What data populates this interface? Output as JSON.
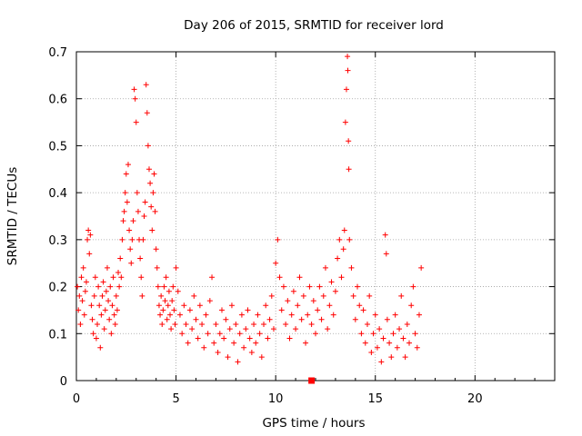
{
  "chart_data": {
    "type": "scatter",
    "title": "Day 206 of 2015, SRMTID for receiver lord",
    "xlabel": "GPS time / hours",
    "ylabel": "SRMTID / TECUs",
    "xlim": [
      0,
      24
    ],
    "ylim": [
      0,
      0.7
    ],
    "grid": true,
    "xticks": [
      0,
      5,
      10,
      15,
      20
    ],
    "xtick_labels": [
      "0",
      "5",
      "10",
      "15",
      "20"
    ],
    "yticks": [
      0,
      0.1,
      0.2,
      0.3,
      0.4,
      0.5,
      0.6,
      0.7
    ],
    "ytick_labels": [
      "0",
      "0.1",
      "0.2",
      "0.3",
      "0.4",
      "0.5",
      "0.6",
      "0.7"
    ],
    "marker": "plus",
    "color": "#ff0000",
    "missing_marker": {
      "x": 11.8,
      "y": 0.0,
      "shape": "square"
    },
    "series": [
      {
        "name": "SRMTID",
        "points": [
          [
            0.05,
            0.2
          ],
          [
            0.1,
            0.15
          ],
          [
            0.15,
            0.18
          ],
          [
            0.2,
            0.12
          ],
          [
            0.25,
            0.22
          ],
          [
            0.3,
            0.17
          ],
          [
            0.35,
            0.24
          ],
          [
            0.4,
            0.14
          ],
          [
            0.45,
            0.19
          ],
          [
            0.5,
            0.21
          ],
          [
            0.55,
            0.3
          ],
          [
            0.6,
            0.32
          ],
          [
            0.65,
            0.27
          ],
          [
            0.7,
            0.31
          ],
          [
            0.75,
            0.16
          ],
          [
            0.8,
            0.13
          ],
          [
            0.85,
            0.1
          ],
          [
            0.9,
            0.18
          ],
          [
            0.95,
            0.22
          ],
          [
            1.0,
            0.09
          ],
          [
            1.05,
            0.12
          ],
          [
            1.1,
            0.2
          ],
          [
            1.15,
            0.16
          ],
          [
            1.2,
            0.07
          ],
          [
            1.25,
            0.14
          ],
          [
            1.3,
            0.18
          ],
          [
            1.35,
            0.21
          ],
          [
            1.4,
            0.11
          ],
          [
            1.45,
            0.15
          ],
          [
            1.5,
            0.19
          ],
          [
            1.55,
            0.24
          ],
          [
            1.6,
            0.17
          ],
          [
            1.65,
            0.13
          ],
          [
            1.7,
            0.2
          ],
          [
            1.75,
            0.1
          ],
          [
            1.8,
            0.16
          ],
          [
            1.85,
            0.22
          ],
          [
            1.9,
            0.14
          ],
          [
            1.95,
            0.12
          ],
          [
            2.0,
            0.18
          ],
          [
            2.05,
            0.15
          ],
          [
            2.1,
            0.23
          ],
          [
            2.15,
            0.2
          ],
          [
            2.2,
            0.26
          ],
          [
            2.25,
            0.22
          ],
          [
            2.3,
            0.3
          ],
          [
            2.35,
            0.34
          ],
          [
            2.4,
            0.36
          ],
          [
            2.45,
            0.4
          ],
          [
            2.5,
            0.44
          ],
          [
            2.55,
            0.38
          ],
          [
            2.6,
            0.46
          ],
          [
            2.65,
            0.32
          ],
          [
            2.7,
            0.28
          ],
          [
            2.75,
            0.25
          ],
          [
            2.8,
            0.3
          ],
          [
            2.85,
            0.34
          ],
          [
            2.9,
            0.62
          ],
          [
            2.95,
            0.6
          ],
          [
            3.0,
            0.55
          ],
          [
            3.05,
            0.4
          ],
          [
            3.1,
            0.36
          ],
          [
            3.15,
            0.3
          ],
          [
            3.2,
            0.26
          ],
          [
            3.25,
            0.22
          ],
          [
            3.3,
            0.18
          ],
          [
            3.35,
            0.3
          ],
          [
            3.4,
            0.35
          ],
          [
            3.45,
            0.38
          ],
          [
            3.5,
            0.63
          ],
          [
            3.55,
            0.57
          ],
          [
            3.6,
            0.5
          ],
          [
            3.65,
            0.45
          ],
          [
            3.7,
            0.42
          ],
          [
            3.75,
            0.37
          ],
          [
            3.8,
            0.32
          ],
          [
            3.85,
            0.4
          ],
          [
            3.9,
            0.44
          ],
          [
            3.95,
            0.36
          ],
          [
            4.0,
            0.28
          ],
          [
            4.05,
            0.24
          ],
          [
            4.1,
            0.2
          ],
          [
            4.15,
            0.16
          ],
          [
            4.2,
            0.14
          ],
          [
            4.25,
            0.18
          ],
          [
            4.3,
            0.12
          ],
          [
            4.35,
            0.15
          ],
          [
            4.4,
            0.2
          ],
          [
            4.45,
            0.17
          ],
          [
            4.5,
            0.22
          ],
          [
            4.55,
            0.13
          ],
          [
            4.6,
            0.16
          ],
          [
            4.65,
            0.19
          ],
          [
            4.7,
            0.14
          ],
          [
            4.75,
            0.11
          ],
          [
            4.8,
            0.17
          ],
          [
            4.85,
            0.2
          ],
          [
            4.9,
            0.15
          ],
          [
            4.95,
            0.12
          ],
          [
            5.0,
            0.24
          ],
          [
            5.1,
            0.19
          ],
          [
            5.2,
            0.14
          ],
          [
            5.3,
            0.1
          ],
          [
            5.4,
            0.16
          ],
          [
            5.5,
            0.12
          ],
          [
            5.6,
            0.08
          ],
          [
            5.7,
            0.15
          ],
          [
            5.8,
            0.11
          ],
          [
            5.9,
            0.18
          ],
          [
            6.0,
            0.13
          ],
          [
            6.1,
            0.09
          ],
          [
            6.2,
            0.16
          ],
          [
            6.3,
            0.12
          ],
          [
            6.4,
            0.07
          ],
          [
            6.5,
            0.14
          ],
          [
            6.6,
            0.1
          ],
          [
            6.7,
            0.17
          ],
          [
            6.8,
            0.22
          ],
          [
            6.9,
            0.08
          ],
          [
            7.0,
            0.12
          ],
          [
            7.1,
            0.06
          ],
          [
            7.2,
            0.1
          ],
          [
            7.3,
            0.15
          ],
          [
            7.4,
            0.09
          ],
          [
            7.5,
            0.13
          ],
          [
            7.6,
            0.05
          ],
          [
            7.7,
            0.11
          ],
          [
            7.8,
            0.16
          ],
          [
            7.9,
            0.08
          ],
          [
            8.0,
            0.12
          ],
          [
            8.1,
            0.04
          ],
          [
            8.2,
            0.1
          ],
          [
            8.3,
            0.14
          ],
          [
            8.4,
            0.07
          ],
          [
            8.5,
            0.11
          ],
          [
            8.6,
            0.15
          ],
          [
            8.7,
            0.09
          ],
          [
            8.8,
            0.06
          ],
          [
            8.9,
            0.12
          ],
          [
            9.0,
            0.08
          ],
          [
            9.1,
            0.14
          ],
          [
            9.2,
            0.1
          ],
          [
            9.3,
            0.05
          ],
          [
            9.4,
            0.12
          ],
          [
            9.5,
            0.16
          ],
          [
            9.6,
            0.09
          ],
          [
            9.7,
            0.13
          ],
          [
            9.8,
            0.18
          ],
          [
            9.9,
            0.11
          ],
          [
            10.0,
            0.25
          ],
          [
            10.1,
            0.3
          ],
          [
            10.2,
            0.22
          ],
          [
            10.3,
            0.15
          ],
          [
            10.4,
            0.2
          ],
          [
            10.5,
            0.12
          ],
          [
            10.6,
            0.17
          ],
          [
            10.7,
            0.09
          ],
          [
            10.8,
            0.14
          ],
          [
            10.9,
            0.19
          ],
          [
            11.0,
            0.11
          ],
          [
            11.1,
            0.16
          ],
          [
            11.2,
            0.22
          ],
          [
            11.3,
            0.13
          ],
          [
            11.4,
            0.18
          ],
          [
            11.5,
            0.08
          ],
          [
            11.6,
            0.14
          ],
          [
            11.7,
            0.2
          ],
          [
            11.8,
            0.12
          ],
          [
            11.9,
            0.17
          ],
          [
            12.0,
            0.1
          ],
          [
            12.1,
            0.15
          ],
          [
            12.2,
            0.2
          ],
          [
            12.3,
            0.13
          ],
          [
            12.4,
            0.18
          ],
          [
            12.5,
            0.24
          ],
          [
            12.6,
            0.11
          ],
          [
            12.7,
            0.16
          ],
          [
            12.8,
            0.21
          ],
          [
            12.9,
            0.14
          ],
          [
            13.0,
            0.19
          ],
          [
            13.1,
            0.26
          ],
          [
            13.2,
            0.3
          ],
          [
            13.3,
            0.22
          ],
          [
            13.4,
            0.28
          ],
          [
            13.45,
            0.32
          ],
          [
            13.5,
            0.55
          ],
          [
            13.55,
            0.62
          ],
          [
            13.6,
            0.69
          ],
          [
            13.62,
            0.66
          ],
          [
            13.65,
            0.51
          ],
          [
            13.67,
            0.45
          ],
          [
            13.7,
            0.3
          ],
          [
            13.8,
            0.24
          ],
          [
            13.9,
            0.18
          ],
          [
            14.0,
            0.13
          ],
          [
            14.1,
            0.2
          ],
          [
            14.2,
            0.16
          ],
          [
            14.3,
            0.1
          ],
          [
            14.4,
            0.15
          ],
          [
            14.5,
            0.08
          ],
          [
            14.6,
            0.12
          ],
          [
            14.7,
            0.18
          ],
          [
            14.8,
            0.06
          ],
          [
            14.9,
            0.1
          ],
          [
            15.0,
            0.14
          ],
          [
            15.1,
            0.07
          ],
          [
            15.2,
            0.11
          ],
          [
            15.3,
            0.04
          ],
          [
            15.4,
            0.09
          ],
          [
            15.5,
            0.31
          ],
          [
            15.55,
            0.27
          ],
          [
            15.6,
            0.13
          ],
          [
            15.7,
            0.08
          ],
          [
            15.8,
            0.05
          ],
          [
            15.9,
            0.1
          ],
          [
            16.0,
            0.14
          ],
          [
            16.1,
            0.07
          ],
          [
            16.2,
            0.11
          ],
          [
            16.3,
            0.18
          ],
          [
            16.4,
            0.09
          ],
          [
            16.5,
            0.05
          ],
          [
            16.6,
            0.12
          ],
          [
            16.7,
            0.08
          ],
          [
            16.8,
            0.16
          ],
          [
            16.9,
            0.2
          ],
          [
            17.0,
            0.1
          ],
          [
            17.1,
            0.07
          ],
          [
            17.2,
            0.14
          ],
          [
            17.3,
            0.24
          ]
        ]
      }
    ]
  }
}
